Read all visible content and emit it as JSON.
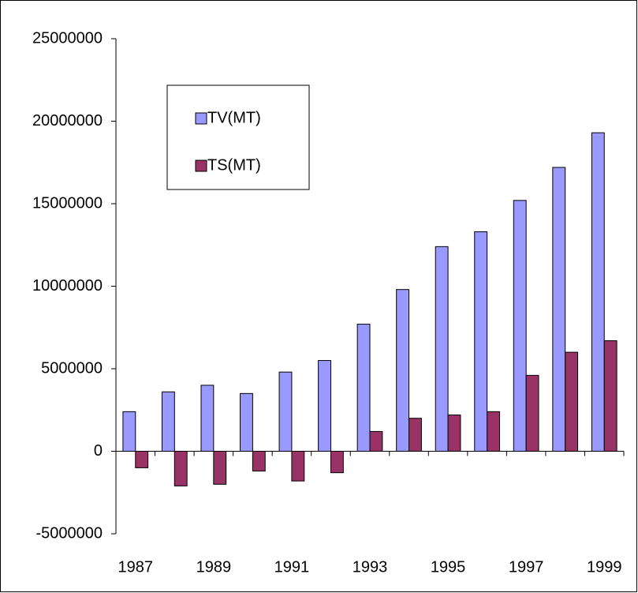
{
  "chart_data": {
    "type": "bar",
    "categories": [
      "1987",
      null,
      "1989",
      null,
      "1991",
      null,
      "1993",
      null,
      "1995",
      null,
      "1997",
      null,
      "1999"
    ],
    "series": [
      {
        "name": "TV(MT)",
        "color": "#9999ff",
        "values": [
          2400000,
          3600000,
          4000000,
          3500000,
          4800000,
          5500000,
          7700000,
          9800000,
          12400000,
          13300000,
          15200000,
          17200000,
          19300000
        ]
      },
      {
        "name": "TS(MT)",
        "color": "#993366",
        "values": [
          -1000000,
          -2100000,
          -2000000,
          -1200000,
          -1800000,
          -1300000,
          1200000,
          2000000,
          2200000,
          2400000,
          4600000,
          6000000,
          6700000
        ]
      }
    ],
    "ylim": [
      -5000000,
      25000000
    ],
    "yticks": [
      -5000000,
      0,
      5000000,
      10000000,
      15000000,
      20000000,
      25000000
    ],
    "grid": false
  }
}
